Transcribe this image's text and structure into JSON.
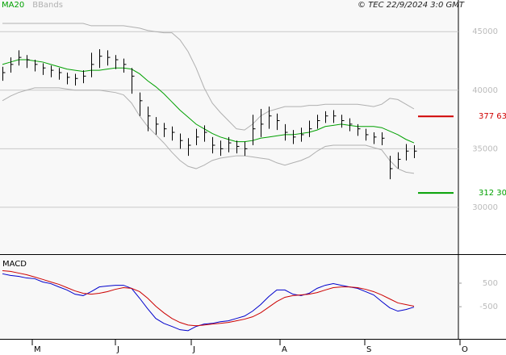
{
  "chart_data": {
    "type": "ohlc",
    "legend": [
      {
        "name": "MA20",
        "color": "#00a000"
      },
      {
        "name": "BBands",
        "color": "#b0b0b0"
      }
    ],
    "source": "© TEC 22/9/2024 3:0 GMT",
    "xlim": [
      -0.3,
      56.5
    ],
    "xticks": [
      {
        "value": 3.7,
        "label": "M"
      },
      {
        "value": 14,
        "label": "J"
      },
      {
        "value": 23.4,
        "label": "J"
      },
      {
        "value": 34.4,
        "label": "A"
      },
      {
        "value": 44.9,
        "label": "S"
      },
      {
        "value": 56.7,
        "label": "O"
      }
    ],
    "ylim": [
      26000,
      47700
    ],
    "yticks": [
      30000,
      35000,
      40000,
      45000
    ],
    "grid": true,
    "bars": {
      "color": "#000000",
      "high": [
        42000,
        42800,
        43400,
        43000,
        42600,
        42300,
        42100,
        41900,
        41500,
        41400,
        41700,
        43200,
        43500,
        43400,
        43000,
        42700,
        41900,
        39800,
        38600,
        37700,
        37200,
        36900,
        36300,
        35900,
        36700,
        37000,
        36000,
        35700,
        36000,
        35700,
        35600,
        37900,
        38400,
        38600,
        38000,
        37100,
        36600,
        36800,
        37400,
        37900,
        38200,
        38300,
        37900,
        37600,
        37100,
        36700,
        36400,
        36400,
        34400,
        34700,
        35400,
        35300
      ],
      "low": [
        40800,
        41500,
        42100,
        41900,
        41600,
        41300,
        41100,
        40900,
        40500,
        40400,
        40600,
        41100,
        41900,
        42100,
        41800,
        41500,
        39700,
        37800,
        36500,
        36200,
        36000,
        35700,
        35000,
        34400,
        35300,
        35600,
        34600,
        34400,
        34700,
        34600,
        34400,
        35300,
        36000,
        36700,
        36600,
        35700,
        35400,
        35600,
        36000,
        36700,
        37200,
        37200,
        36800,
        36500,
        36100,
        35700,
        35400,
        35300,
        32400,
        33300,
        34000,
        34200
      ],
      "close": [
        41500,
        42200,
        42800,
        42600,
        42200,
        41900,
        41700,
        41500,
        41100,
        41000,
        41200,
        42200,
        42900,
        42800,
        42600,
        42200,
        41200,
        39100,
        37800,
        37100,
        36700,
        36400,
        35700,
        35300,
        36000,
        36400,
        35300,
        35000,
        35500,
        35200,
        35000,
        36700,
        37100,
        37800,
        37400,
        36400,
        36000,
        36200,
        36700,
        37400,
        37800,
        37800,
        37400,
        37100,
        36700,
        36200,
        36000,
        35900,
        33300,
        34100,
        34800,
        34800
      ]
    },
    "ma20": [
      42200,
      42400,
      42600,
      42600,
      42500,
      42400,
      42200,
      42000,
      41800,
      41700,
      41600,
      41700,
      41700,
      41800,
      41900,
      41900,
      41800,
      41400,
      40800,
      40300,
      39700,
      39000,
      38300,
      37700,
      37100,
      36700,
      36300,
      36000,
      35800,
      35600,
      35600,
      35700,
      35900,
      36000,
      36100,
      36200,
      36200,
      36300,
      36400,
      36600,
      36900,
      37000,
      37100,
      37000,
      36900,
      36900,
      36900,
      36800,
      36500,
      36200,
      35800,
      35500
    ],
    "bband_upper": [
      45700,
      45700,
      45700,
      45700,
      45700,
      45700,
      45700,
      45700,
      45700,
      45700,
      45700,
      45500,
      45500,
      45500,
      45500,
      45500,
      45400,
      45300,
      45100,
      45000,
      44900,
      44900,
      44300,
      43300,
      41900,
      40200,
      38900,
      38100,
      37400,
      36700,
      36600,
      37100,
      37800,
      38200,
      38400,
      38600,
      38600,
      38600,
      38700,
      38700,
      38800,
      38800,
      38800,
      38800,
      38800,
      38700,
      38600,
      38800,
      39300,
      39200,
      38800,
      38400
    ],
    "bband_lower": [
      39100,
      39500,
      39800,
      40000,
      40200,
      40200,
      40200,
      40200,
      40100,
      40000,
      40000,
      40000,
      40000,
      39900,
      39800,
      39600,
      38900,
      37800,
      36900,
      36200,
      35500,
      34700,
      34000,
      33500,
      33300,
      33600,
      34000,
      34200,
      34300,
      34400,
      34400,
      34300,
      34200,
      34100,
      33800,
      33600,
      33800,
      34000,
      34300,
      34800,
      35200,
      35300,
      35300,
      35300,
      35300,
      35300,
      35100,
      34900,
      34000,
      33300,
      33000,
      32900
    ],
    "levels": [
      {
        "value": 37763,
        "label": "377 63",
        "color": "#d00000"
      },
      {
        "value": 31230,
        "label": "312 30",
        "color": "#00a000"
      }
    ],
    "macd": {
      "title": "MACD",
      "ylim": [
        -1800,
        1700
      ],
      "yticks": [
        500,
        -500
      ],
      "series": [
        {
          "color": "#0000cc",
          "values": [
            900,
            830,
            790,
            720,
            690,
            550,
            480,
            340,
            210,
            30,
            -30,
            140,
            340,
            380,
            410,
            410,
            280,
            -140,
            -590,
            -1000,
            -1210,
            -1340,
            -1480,
            -1520,
            -1340,
            -1240,
            -1210,
            -1140,
            -1100,
            -1000,
            -900,
            -690,
            -410,
            -70,
            210,
            210,
            30,
            -30,
            70,
            280,
            410,
            480,
            410,
            340,
            280,
            140,
            0,
            -280,
            -550,
            -690,
            -620,
            -520
          ]
        },
        {
          "color": "#cc0000",
          "values": [
            1030,
            1000,
            930,
            860,
            760,
            660,
            550,
            450,
            310,
            170,
            70,
            30,
            70,
            140,
            240,
            310,
            280,
            140,
            -140,
            -480,
            -760,
            -1000,
            -1170,
            -1280,
            -1310,
            -1280,
            -1240,
            -1210,
            -1170,
            -1100,
            -1030,
            -930,
            -760,
            -520,
            -280,
            -100,
            -30,
            0,
            30,
            100,
            210,
            310,
            340,
            340,
            310,
            240,
            140,
            0,
            -170,
            -340,
            -410,
            -480
          ]
        }
      ]
    }
  }
}
